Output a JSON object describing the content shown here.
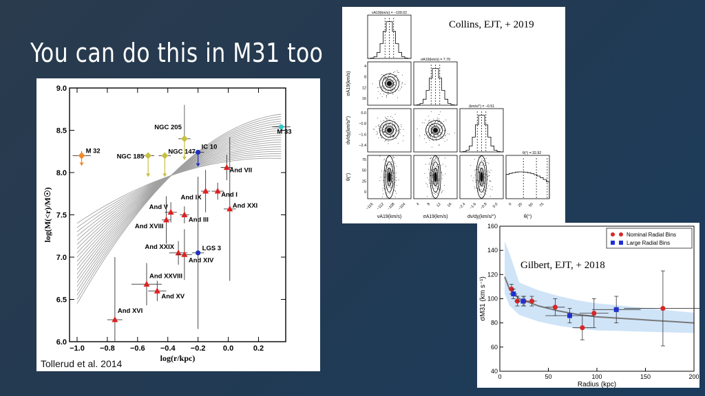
{
  "slide": {
    "title": "You can do this in M31 too"
  },
  "chart_data": [
    {
      "type": "scatter",
      "title": "",
      "xlabel": "log(r/kpc)",
      "ylabel": "log(M(<r)/M☉)",
      "xlim": [
        -1.05,
        0.38
      ],
      "ylim": [
        6.0,
        9.0
      ],
      "xticks": [
        "−1.0",
        "−0.8",
        "−0.6",
        "−0.4",
        "−0.2",
        "0.0",
        "0.2"
      ],
      "yticks": [
        "6.0",
        "6.5",
        "7.0",
        "7.5",
        "8.0",
        "8.5",
        "9.0"
      ],
      "credit": "Tollerud et al. 2014",
      "points": [
        {
          "name": "M 32",
          "x": -0.97,
          "y": 8.2,
          "yerr": 0.05,
          "xerr": 0.06,
          "marker": "diamond",
          "color": "#f08a2c",
          "limit": "down"
        },
        {
          "name": "NGC 185",
          "x": -0.53,
          "y": 8.2,
          "xerr": 0.04,
          "marker": "diamond",
          "color": "#c8c040",
          "limit": "down"
        },
        {
          "name": "NGC 147",
          "x": -0.42,
          "y": 8.2,
          "xerr": 0.04,
          "marker": "diamond",
          "color": "#c8c040",
          "limit": "down"
        },
        {
          "name": "NGC 205",
          "x": -0.29,
          "y": 8.4,
          "xerr": 0.04,
          "marker": "diamond",
          "color": "#c8c040",
          "limit": "down"
        },
        {
          "name": "IC 10",
          "x": -0.2,
          "y": 8.24,
          "xerr": 0.04,
          "marker": "circle",
          "color": "#2030c0",
          "limit": "down"
        },
        {
          "name": "M 33",
          "x": 0.35,
          "y": 8.54,
          "xerr": 0.06,
          "marker": "circle",
          "color": "#30c8c8"
        },
        {
          "name": "And VII",
          "x": -0.01,
          "y": 8.06,
          "xerr": 0.04,
          "yerr": 0.15,
          "marker": "triangle",
          "color": "#e02020"
        },
        {
          "name": "And IX",
          "x": -0.15,
          "y": 7.78,
          "xerr": 0.03,
          "yerr": 0.25,
          "marker": "triangle",
          "color": "#e02020"
        },
        {
          "name": "And I",
          "x": -0.07,
          "y": 7.78,
          "xerr": 0.04,
          "yerr": 0.1,
          "marker": "triangle",
          "color": "#e02020"
        },
        {
          "name": "And XXI",
          "x": 0.01,
          "y": 7.57,
          "xerr": 0.04,
          "yerr": 0.85,
          "marker": "triangle",
          "color": "#e02020"
        },
        {
          "name": "And V",
          "x": -0.38,
          "y": 7.53,
          "xerr": 0.04,
          "yerr": 0.12,
          "marker": "triangle",
          "color": "#e02020"
        },
        {
          "name": "And III",
          "x": -0.29,
          "y": 7.5,
          "xerr": 0.03,
          "yerr": 0.1,
          "marker": "triangle",
          "color": "#e02020"
        },
        {
          "name": "And XVIII",
          "x": -0.41,
          "y": 7.44,
          "xerr": 0.03,
          "yerr": 0.28,
          "marker": "triangle",
          "color": "#e02020"
        },
        {
          "name": "And XXIX",
          "x": -0.33,
          "y": 7.05,
          "xerr": 0.06,
          "yerr": 0.14,
          "marker": "triangle",
          "color": "#e02020"
        },
        {
          "name": "And XIV",
          "x": -0.29,
          "y": 7.03,
          "xerr": 0.05,
          "yerr": 0.3,
          "marker": "triangle",
          "color": "#e02020"
        },
        {
          "name": "LGS 3",
          "x": -0.2,
          "y": 7.05,
          "xerr": 0.04,
          "yerr": 0.9,
          "marker": "circle",
          "color": "#2030c0"
        },
        {
          "name": "And XXVIII",
          "x": -0.54,
          "y": 6.68,
          "xerr": 0.1,
          "yerr": 0.25,
          "marker": "triangle",
          "color": "#e02020"
        },
        {
          "name": "And XV",
          "x": -0.47,
          "y": 6.6,
          "xerr": 0.06,
          "yerr": 0.12,
          "marker": "triangle",
          "color": "#e02020"
        },
        {
          "name": "And XVI",
          "x": -0.75,
          "y": 6.26,
          "xerr": 0.05,
          "yerr": 0.74,
          "marker": "triangle",
          "color": "#e02020"
        }
      ],
      "model_curves": {
        "count": 20,
        "color": "#a0a0a0"
      }
    },
    {
      "type": "corner",
      "credit": "Collins, EJT, + 2019",
      "parameters": [
        "v_A19 (km/s)",
        "σ_A19 (km/s)",
        "dv/dχ (km/s/°)",
        "θ(°)"
      ],
      "x_axis_labels": [
        "vA19(km/s)",
        "σA19(km/s)",
        "dv/dχ(km/s/°)",
        "θ(°)"
      ],
      "y_axis_labels": [
        "σA19(km/s)",
        "dv/dχ(km/s/°)",
        "θ(°)"
      ],
      "titles": [
        "vA19(km/s) = −109.02",
        "σA19(km/s) = 7.79",
        "(km/s/°) = −0.51",
        "θ(°) = 32.92"
      ],
      "x_ticks": [
        [
          "−116",
          "−112",
          "−108",
          "−104"
        ],
        [
          "4",
          "8",
          "12",
          "16"
        ],
        [
          "−2.4",
          "−1.6",
          "−0.8",
          "0.0"
        ],
        [
          "0",
          "25",
          "50",
          "75"
        ]
      ],
      "y_ticks": [
        [
          "4",
          "8",
          "12",
          "16"
        ],
        [
          "0.0",
          "−0.8",
          "−1.6",
          "−2.4"
        ],
        [
          "75",
          "50",
          "25",
          "0"
        ]
      ]
    },
    {
      "type": "line",
      "credit": "Gilbert, EJT, + 2018",
      "xlabel": "Radius (kpc)",
      "ylabel": "σM31 (km s⁻¹)",
      "xlim": [
        0,
        200
      ],
      "ylim": [
        40,
        160
      ],
      "xticks": [
        "0",
        "50",
        "100",
        "150",
        "200"
      ],
      "yticks": [
        "40",
        "60",
        "80",
        "100",
        "120",
        "140",
        "160"
      ],
      "legend": [
        "Nominal Radial Bins",
        "Large Radial Bins"
      ],
      "legend_position": "top-right",
      "series": [
        {
          "name": "Nominal Radial Bins",
          "color": "#d62728",
          "marker": "circle",
          "points": [
            [
              12,
              108,
              3,
              4
            ],
            [
              18,
              98,
              3,
              4
            ],
            [
              25,
              98,
              4,
              4
            ],
            [
              33,
              98,
              5,
              4
            ],
            [
              57,
              93,
              10,
              7
            ],
            [
              85,
              76,
              10,
              10
            ],
            [
              97,
              88,
              15,
              12
            ],
            [
              168,
              92,
              40,
              31
            ]
          ]
        },
        {
          "name": "Large Radial Bins",
          "color": "#2030d0",
          "marker": "square",
          "points": [
            [
              14,
              104,
              4,
              4
            ],
            [
              24,
              98,
              6,
              4
            ],
            [
              72,
              86,
              25,
              6
            ],
            [
              120,
              91,
              25,
              11
            ]
          ]
        }
      ],
      "model": {
        "x": [
          5,
          10,
          20,
          40,
          60,
          80,
          100,
          120,
          140,
          160,
          180,
          200
        ],
        "y": [
          118,
          108,
          100,
          94,
          90,
          87,
          85,
          84,
          83,
          82,
          81,
          80
        ]
      }
    }
  ]
}
